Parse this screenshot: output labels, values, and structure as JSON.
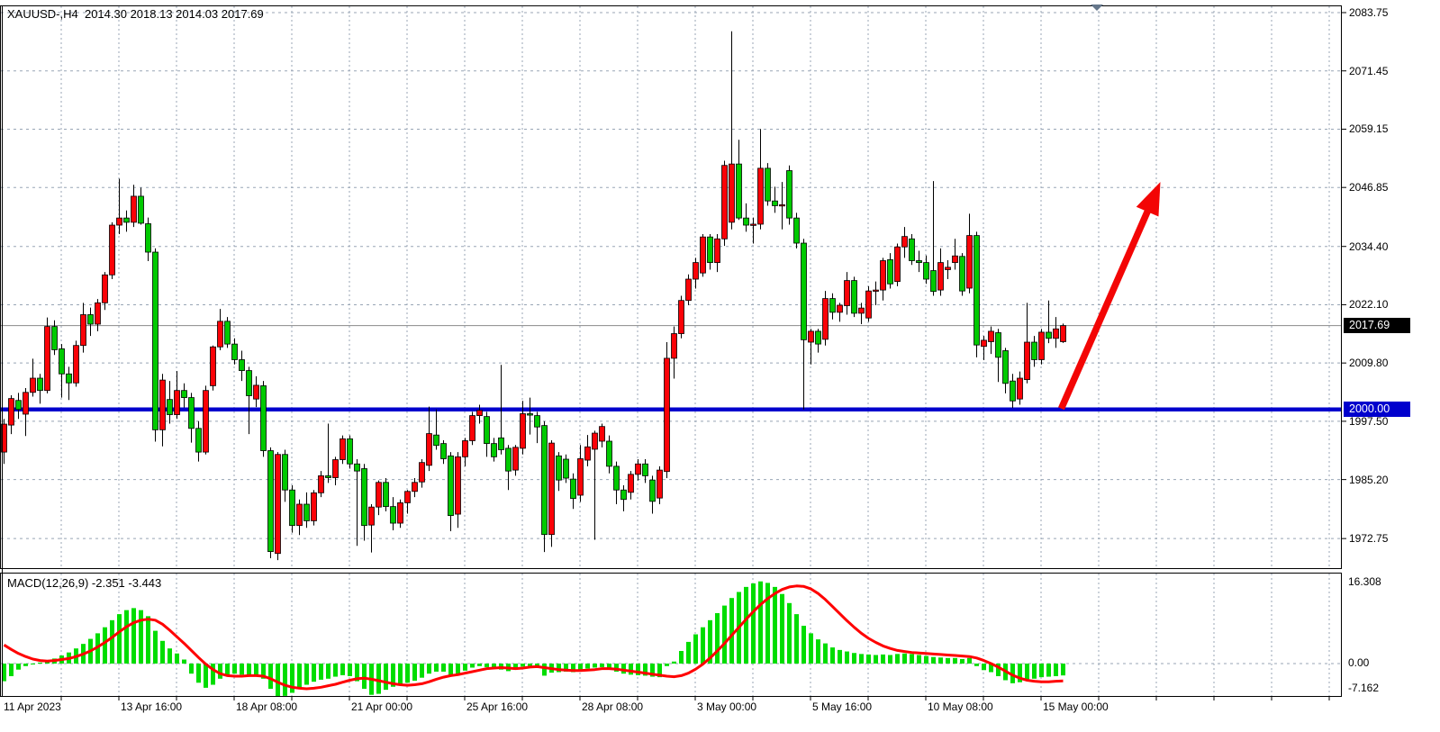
{
  "header": {
    "title": "XAUUSD-,H4  2014.30 2018.13 2014.03 2017.69"
  },
  "macd_panel": {
    "label": "MACD(12,26,9) -2.351 -3.443",
    "axis": {
      "max": "16.308",
      "zero": "0.00",
      "min": "-7.162"
    }
  },
  "price_axis": {
    "labels": [
      "2083.75",
      "2071.45",
      "2059.15",
      "2046.85",
      "2034.40",
      "2022.10",
      "2009.80",
      "1997.50",
      "1985.20",
      "1972.75"
    ],
    "current_price_badge": "2017.69",
    "level_badge": "2000.00"
  },
  "time_axis": {
    "labels": [
      {
        "text": "11 Apr 2023",
        "index": 0
      },
      {
        "text": "13 Apr 16:00",
        "index": 16
      },
      {
        "text": "18 Apr 08:00",
        "index": 32
      },
      {
        "text": "21 Apr 00:00",
        "index": 48
      },
      {
        "text": "25 Apr 16:00",
        "index": 64
      },
      {
        "text": "28 Apr 08:00",
        "index": 80
      },
      {
        "text": "3 May 00:00",
        "index": 96
      },
      {
        "text": "5 May 16:00",
        "index": 112
      },
      {
        "text": "10 May 08:00",
        "index": 128
      },
      {
        "text": "15 May 00:00",
        "index": 144
      }
    ]
  },
  "colors": {
    "bull": "#fb0207",
    "bear": "#00ca00",
    "wick": "#000000",
    "grid": "#98a5b5",
    "panel_border": "#000000",
    "blue_level": "#0000cd",
    "bid_line": "#8a8a8a",
    "macd_histogram": "#00dd00",
    "macd_signal": "#ff0000",
    "arrow": "#f30505",
    "badge_current_bg": "#000000",
    "badge_level_bg": "#0000cd",
    "badge_text": "#ffffff",
    "shift_marker": "#64768a"
  },
  "chart_data": {
    "type": "candlestick",
    "symbol": "XAUUSD",
    "timeframe": "H4",
    "title": "XAUUSD-,H4",
    "current_bar": {
      "open": 2014.3,
      "high": 2018.13,
      "low": 2014.03,
      "close": 2017.69
    },
    "bid_price": 2017.69,
    "horizontal_level": 2000.0,
    "price_axis_ticks": [
      2083.75,
      2071.45,
      2059.15,
      2046.85,
      2034.4,
      2022.1,
      2009.8,
      1997.5,
      1985.2,
      1972.75
    ],
    "color_convention": "red body = bullish, green body = bearish",
    "candles_ohlc": [
      [
        1991.0,
        1998.0,
        1988.5,
        1996.9
      ],
      [
        1996.7,
        2003.0,
        1994.8,
        2002.3
      ],
      [
        2001.9,
        2003.5,
        1998.0,
        2000.0
      ],
      [
        1999.0,
        2004.5,
        1994.4,
        2003.6
      ],
      [
        2003.6,
        2010.7,
        2002.7,
        2006.6
      ],
      [
        2006.6,
        2007.5,
        2001.2,
        2004.0
      ],
      [
        2004.0,
        2019.4,
        2003.4,
        2017.5
      ],
      [
        2017.5,
        2018.8,
        2011.5,
        2012.6
      ],
      [
        2012.8,
        2013.8,
        2002.5,
        2007.5
      ],
      [
        2007.5,
        2009.0,
        2002.0,
        2005.6
      ],
      [
        2005.6,
        2014.5,
        2004.8,
        2013.5
      ],
      [
        2013.5,
        2022.5,
        2012.0,
        2020.0
      ],
      [
        2020.0,
        2021.5,
        2015.5,
        2018.0
      ],
      [
        2018.0,
        2023.3,
        2016.5,
        2022.5
      ],
      [
        2022.5,
        2029.0,
        2021.0,
        2028.4
      ],
      [
        2028.4,
        2039.5,
        2027.5,
        2038.9
      ],
      [
        2038.9,
        2048.7,
        2037.0,
        2040.4
      ],
      [
        2040.4,
        2042.0,
        2037.5,
        2039.5
      ],
      [
        2039.5,
        2047.4,
        2038.5,
        2045.0
      ],
      [
        2045.0,
        2046.8,
        2039.0,
        2039.3
      ],
      [
        2039.2,
        2040.5,
        2031.3,
        2033.2
      ],
      [
        2033.2,
        2034.0,
        1993.2,
        1995.7
      ],
      [
        1995.7,
        2007.5,
        1992.2,
        2006.2
      ],
      [
        2002.1,
        2006.0,
        1997.0,
        1998.9
      ],
      [
        1998.9,
        2008.1,
        1998.0,
        2004.0
      ],
      [
        2004.0,
        2005.5,
        2000.4,
        2002.5
      ],
      [
        2002.5,
        2003.5,
        1993.0,
        1996.0
      ],
      [
        1996.0,
        1997.5,
        1989.0,
        1991.0
      ],
      [
        1991.0,
        2005.0,
        1990.5,
        2004.0
      ],
      [
        2005.0,
        2013.5,
        2004.0,
        2013.2
      ],
      [
        2013.2,
        2021.2,
        2012.5,
        2018.6
      ],
      [
        2018.6,
        2019.5,
        2013.0,
        2013.8
      ],
      [
        2013.8,
        2015.0,
        2009.5,
        2010.5
      ],
      [
        2010.5,
        2012.4,
        2006.0,
        2008.2
      ],
      [
        2008.2,
        2009.0,
        1994.8,
        2002.9
      ],
      [
        2002.2,
        2007.0,
        2000.5,
        2005.1
      ],
      [
        2005.0,
        2006.0,
        1990.0,
        1991.3
      ],
      [
        1991.3,
        1992.0,
        1968.6,
        1970.0
      ],
      [
        1969.6,
        1991.0,
        1968.2,
        1990.5
      ],
      [
        1990.5,
        1991.5,
        1980.5,
        1983.0
      ],
      [
        1983.0,
        1984.0,
        1974.0,
        1975.5
      ],
      [
        1975.5,
        1981.0,
        1973.5,
        1980.0
      ],
      [
        1980.0,
        1982.5,
        1975.0,
        1976.5
      ],
      [
        1976.5,
        1983.0,
        1975.5,
        1982.4
      ],
      [
        1982.4,
        1987.0,
        1981.5,
        1986.0
      ],
      [
        1986.0,
        1997.0,
        1984.5,
        1985.6
      ],
      [
        1985.6,
        1990.0,
        1984.0,
        1989.4
      ],
      [
        1989.4,
        1994.5,
        1988.5,
        1993.8
      ],
      [
        1993.8,
        1994.5,
        1987.5,
        1988.5
      ],
      [
        1988.5,
        1989.5,
        1971.2,
        1987.0
      ],
      [
        1987.5,
        1988.5,
        1972.3,
        1975.5
      ],
      [
        1975.6,
        1980.0,
        1969.8,
        1979.4
      ],
      [
        1979.4,
        1985.0,
        1977.7,
        1984.6
      ],
      [
        1984.6,
        1985.5,
        1978.5,
        1979.5
      ],
      [
        1979.5,
        1981.5,
        1974.5,
        1976.0
      ],
      [
        1976.0,
        1981.0,
        1975.0,
        1980.3
      ],
      [
        1980.3,
        1983.0,
        1978.0,
        1982.7
      ],
      [
        1982.7,
        1985.5,
        1981.5,
        1984.6
      ],
      [
        1984.7,
        1989.5,
        1983.5,
        1988.8
      ],
      [
        1988.2,
        2000.6,
        1987.0,
        1994.9
      ],
      [
        1994.6,
        2000.0,
        1991.5,
        1992.4
      ],
      [
        1992.8,
        1993.5,
        1988.5,
        1989.6
      ],
      [
        1990.2,
        1991.0,
        1974.3,
        1977.6
      ],
      [
        1977.9,
        1991.0,
        1975.0,
        1990.0
      ],
      [
        1990.0,
        1994.0,
        1988.0,
        1993.4
      ],
      [
        1993.4,
        1999.5,
        1992.5,
        1998.7
      ],
      [
        1998.7,
        2001.0,
        1997.0,
        1999.8
      ],
      [
        1998.5,
        1999.5,
        1990.0,
        1992.8
      ],
      [
        1992.8,
        1994.0,
        1989.0,
        1990.0
      ],
      [
        1994.0,
        2009.4,
        1990.5,
        1991.5
      ],
      [
        1991.8,
        1992.5,
        1983.0,
        1987.0
      ],
      [
        1987.2,
        1992.5,
        1986.0,
        1992.0
      ],
      [
        1991.8,
        2001.8,
        1990.5,
        1999.1
      ],
      [
        1999.1,
        2002.5,
        1994.7,
        1998.8
      ],
      [
        1998.7,
        1999.5,
        1992.9,
        1996.3
      ],
      [
        1996.6,
        1997.5,
        1969.9,
        1973.6
      ],
      [
        1973.6,
        1993.5,
        1971.0,
        1992.9
      ],
      [
        1990.2,
        1991.0,
        1982.8,
        1985.1
      ],
      [
        1989.5,
        1990.5,
        1984.5,
        1985.5
      ],
      [
        1985.3,
        1986.5,
        1979.0,
        1981.2
      ],
      [
        1981.9,
        1992.5,
        1980.5,
        1989.6
      ],
      [
        1989.3,
        1994.6,
        1988.0,
        1992.1
      ],
      [
        1991.6,
        1995.5,
        1972.5,
        1995.0
      ],
      [
        1993.3,
        1997.0,
        1992.0,
        1996.4
      ],
      [
        1993.3,
        1994.5,
        1986.5,
        1988.0
      ],
      [
        1988.0,
        1989.0,
        1980.0,
        1983.0
      ],
      [
        1983.0,
        1984.0,
        1978.5,
        1981.0
      ],
      [
        1982.5,
        1987.0,
        1981.0,
        1986.3
      ],
      [
        1986.3,
        1989.5,
        1985.0,
        1988.5
      ],
      [
        1988.5,
        1989.5,
        1984.5,
        1986.0
      ],
      [
        1985.1,
        1986.0,
        1978.0,
        1980.6
      ],
      [
        1981.3,
        1988.0,
        1980.0,
        1987.2
      ],
      [
        1986.9,
        2014.2,
        1985.5,
        2010.8
      ],
      [
        2010.8,
        2017.5,
        2006.5,
        2016.0
      ],
      [
        2016.0,
        2024.0,
        2015.0,
        2023.0
      ],
      [
        2023.0,
        2028.5,
        2022.0,
        2027.5
      ],
      [
        2027.5,
        2032.0,
        2025.5,
        2031.0
      ],
      [
        2028.8,
        2037.0,
        2028.0,
        2036.4
      ],
      [
        2036.4,
        2037.0,
        2029.5,
        2031.0
      ],
      [
        2031.0,
        2037.0,
        2029.0,
        2036.0
      ],
      [
        2036.0,
        2052.5,
        2034.5,
        2051.5
      ],
      [
        2039.5,
        2079.8,
        2038.0,
        2051.8
      ],
      [
        2051.8,
        2056.9,
        2040.0,
        2040.4
      ],
      [
        2040.4,
        2043.5,
        2037.5,
        2038.9
      ],
      [
        2038.9,
        2040.5,
        2035.0,
        2039.1
      ],
      [
        2039.1,
        2059.2,
        2038.0,
        2050.9
      ],
      [
        2050.9,
        2052.0,
        2043.0,
        2044.0
      ],
      [
        2044.0,
        2047.0,
        2041.5,
        2043.0
      ],
      [
        2043.0,
        2048.0,
        2038.0,
        2043.2
      ],
      [
        2050.4,
        2051.5,
        2039.0,
        2040.4
      ],
      [
        2040.4,
        2041.5,
        2034.0,
        2035.1
      ],
      [
        2035.1,
        2036.0,
        2000.0,
        2014.7
      ],
      [
        2014.2,
        2017.0,
        2009.5,
        2016.5
      ],
      [
        2016.5,
        2017.0,
        2012.0,
        2013.8
      ],
      [
        2014.8,
        2025.0,
        2013.5,
        2023.4
      ],
      [
        2023.4,
        2024.5,
        2019.0,
        2020.5
      ],
      [
        2020.5,
        2022.5,
        2018.5,
        2022.0
      ],
      [
        2021.9,
        2029.0,
        2020.0,
        2027.2
      ],
      [
        2027.2,
        2028.0,
        2019.5,
        2020.3
      ],
      [
        2020.3,
        2022.5,
        2018.0,
        2021.4
      ],
      [
        2019.3,
        2026.0,
        2018.5,
        2025.0
      ],
      [
        2025.0,
        2027.0,
        2022.0,
        2025.2
      ],
      [
        2025.2,
        2032.0,
        2023.0,
        2031.4
      ],
      [
        2031.6,
        2033.0,
        2025.5,
        2026.5
      ],
      [
        2027.0,
        2035.0,
        2026.0,
        2034.3
      ],
      [
        2034.3,
        2038.5,
        2032.0,
        2036.5
      ],
      [
        2036.0,
        2037.0,
        2030.5,
        2031.4
      ],
      [
        2031.4,
        2033.5,
        2029.0,
        2031.0
      ],
      [
        2031.0,
        2032.5,
        2026.5,
        2027.5
      ],
      [
        2029.3,
        2048.2,
        2024.0,
        2024.9
      ],
      [
        2025.2,
        2034.0,
        2024.0,
        2031.0
      ],
      [
        2029.5,
        2031.5,
        2027.5,
        2030.0
      ],
      [
        2031.0,
        2036.0,
        2029.5,
        2032.4
      ],
      [
        2032.3,
        2033.0,
        2024.0,
        2025.0
      ],
      [
        2025.6,
        2041.3,
        2024.5,
        2036.7
      ],
      [
        2036.7,
        2037.5,
        2011.0,
        2013.6
      ],
      [
        2013.3,
        2015.5,
        2010.4,
        2014.6
      ],
      [
        2014.3,
        2017.5,
        2011.7,
        2016.5
      ],
      [
        2016.2,
        2017.0,
        2005.8,
        2011.0
      ],
      [
        2012.4,
        2013.0,
        2003.4,
        2005.5
      ],
      [
        2006.0,
        2007.5,
        2000.3,
        2001.8
      ],
      [
        2002.2,
        2008.0,
        2001.0,
        2006.6
      ],
      [
        2006.3,
        2022.5,
        2005.5,
        2014.2
      ],
      [
        2014.2,
        2015.5,
        2009.0,
        2010.5
      ],
      [
        2010.5,
        2017.0,
        2009.5,
        2016.3
      ],
      [
        2016.3,
        2023.0,
        2014.0,
        2015.0
      ],
      [
        2015.0,
        2019.5,
        2013.0,
        2017.0
      ],
      [
        2014.3,
        2018.13,
        2014.03,
        2017.69
      ]
    ],
    "macd": {
      "params": [
        12,
        26,
        9
      ],
      "last_macd": -2.351,
      "last_signal": -3.443,
      "axis_range": [
        -7.162,
        16.308
      ],
      "histogram": [
        -3.5,
        -2.5,
        -1.2,
        -0.5,
        0.0,
        0.2,
        0.5,
        1.0,
        1.6,
        2.2,
        3.0,
        3.9,
        4.9,
        6.0,
        7.2,
        8.6,
        9.8,
        10.6,
        11.0,
        10.6,
        9.4,
        6.5,
        4.5,
        3.0,
        2.0,
        0.8,
        -2.0,
        -3.8,
        -4.8,
        -4.2,
        -3.0,
        -2.2,
        -2.0,
        -2.2,
        -2.5,
        -2.3,
        -3.0,
        -5.0,
        -6.8,
        -6.4,
        -5.8,
        -4.8,
        -4.2,
        -3.6,
        -3.2,
        -3.0,
        -2.6,
        -2.3,
        -2.5,
        -3.5,
        -5.0,
        -6.2,
        -6.0,
        -5.2,
        -4.6,
        -4.2,
        -3.8,
        -3.4,
        -2.8,
        -2.0,
        -1.6,
        -1.6,
        -2.4,
        -2.0,
        -1.4,
        -0.8,
        -0.5,
        -0.7,
        -1.0,
        -1.2,
        -1.5,
        -1.2,
        -0.6,
        -0.5,
        -0.7,
        -2.4,
        -1.8,
        -1.7,
        -1.6,
        -1.7,
        -1.3,
        -1.0,
        -0.8,
        -0.7,
        -1.2,
        -1.6,
        -2.0,
        -2.2,
        -2.3,
        -2.4,
        -2.6,
        -2.7,
        -0.5,
        0.4,
        2.5,
        4.3,
        5.8,
        7.2,
        8.6,
        10.0,
        11.5,
        13.0,
        14.2,
        15.2,
        15.9,
        16.3,
        16.0,
        15.2,
        13.8,
        12.0,
        9.8,
        7.5,
        6.0,
        4.8,
        4.0,
        3.2,
        2.7,
        2.4,
        2.1,
        1.9,
        1.8,
        1.7,
        1.8,
        1.7,
        1.9,
        2.0,
        1.9,
        1.7,
        1.5,
        1.3,
        1.2,
        1.1,
        1.1,
        0.9,
        1.1,
        -0.5,
        -1.3,
        -1.7,
        -2.5,
        -3.3,
        -3.9,
        -3.7,
        -3.1,
        -3.0,
        -2.7,
        -2.6,
        -2.5,
        -2.351
      ],
      "signal": [
        3.7,
        2.8,
        2.0,
        1.4,
        0.9,
        0.6,
        0.5,
        0.6,
        0.8,
        1.0,
        1.4,
        1.9,
        2.5,
        3.3,
        4.2,
        5.2,
        6.3,
        7.3,
        8.1,
        8.6,
        8.8,
        8.6,
        7.8,
        6.6,
        5.3,
        4.0,
        2.6,
        1.2,
        -0.1,
        -1.2,
        -2.0,
        -2.4,
        -2.5,
        -2.5,
        -2.4,
        -2.4,
        -2.5,
        -3.0,
        -3.7,
        -4.3,
        -4.7,
        -4.9,
        -5.0,
        -4.9,
        -4.7,
        -4.4,
        -4.1,
        -3.7,
        -3.3,
        -3.0,
        -2.9,
        -3.1,
        -3.4,
        -3.7,
        -4.0,
        -4.2,
        -4.3,
        -4.2,
        -4.0,
        -3.6,
        -3.1,
        -2.7,
        -2.4,
        -2.2,
        -1.9,
        -1.6,
        -1.3,
        -1.0,
        -0.9,
        -0.8,
        -0.9,
        -1.0,
        -0.9,
        -0.7,
        -0.6,
        -0.8,
        -1.0,
        -1.2,
        -1.3,
        -1.4,
        -1.4,
        -1.3,
        -1.2,
        -1.0,
        -1.0,
        -1.1,
        -1.3,
        -1.5,
        -1.7,
        -1.9,
        -2.1,
        -2.3,
        -2.5,
        -2.6,
        -2.4,
        -1.9,
        -1.1,
        -0.1,
        1.1,
        2.5,
        4.0,
        5.6,
        7.2,
        8.8,
        10.3,
        11.7,
        12.9,
        13.9,
        14.7,
        15.2,
        15.4,
        15.3,
        14.8,
        13.9,
        12.7,
        11.3,
        9.9,
        8.5,
        7.2,
        6.0,
        5.0,
        4.2,
        3.5,
        3.0,
        2.6,
        2.4,
        2.2,
        2.1,
        2.0,
        1.9,
        1.8,
        1.7,
        1.6,
        1.5,
        1.4,
        1.1,
        0.6,
        0.0,
        -0.7,
        -1.5,
        -2.3,
        -2.9,
        -3.3,
        -3.5,
        -3.6,
        -3.6,
        -3.5,
        -3.443
      ]
    },
    "trend_arrow": {
      "from": {
        "bar_index": 147,
        "price": 2000.0
      },
      "to": {
        "bar_index": 160.5,
        "price": 2048.0
      }
    }
  }
}
